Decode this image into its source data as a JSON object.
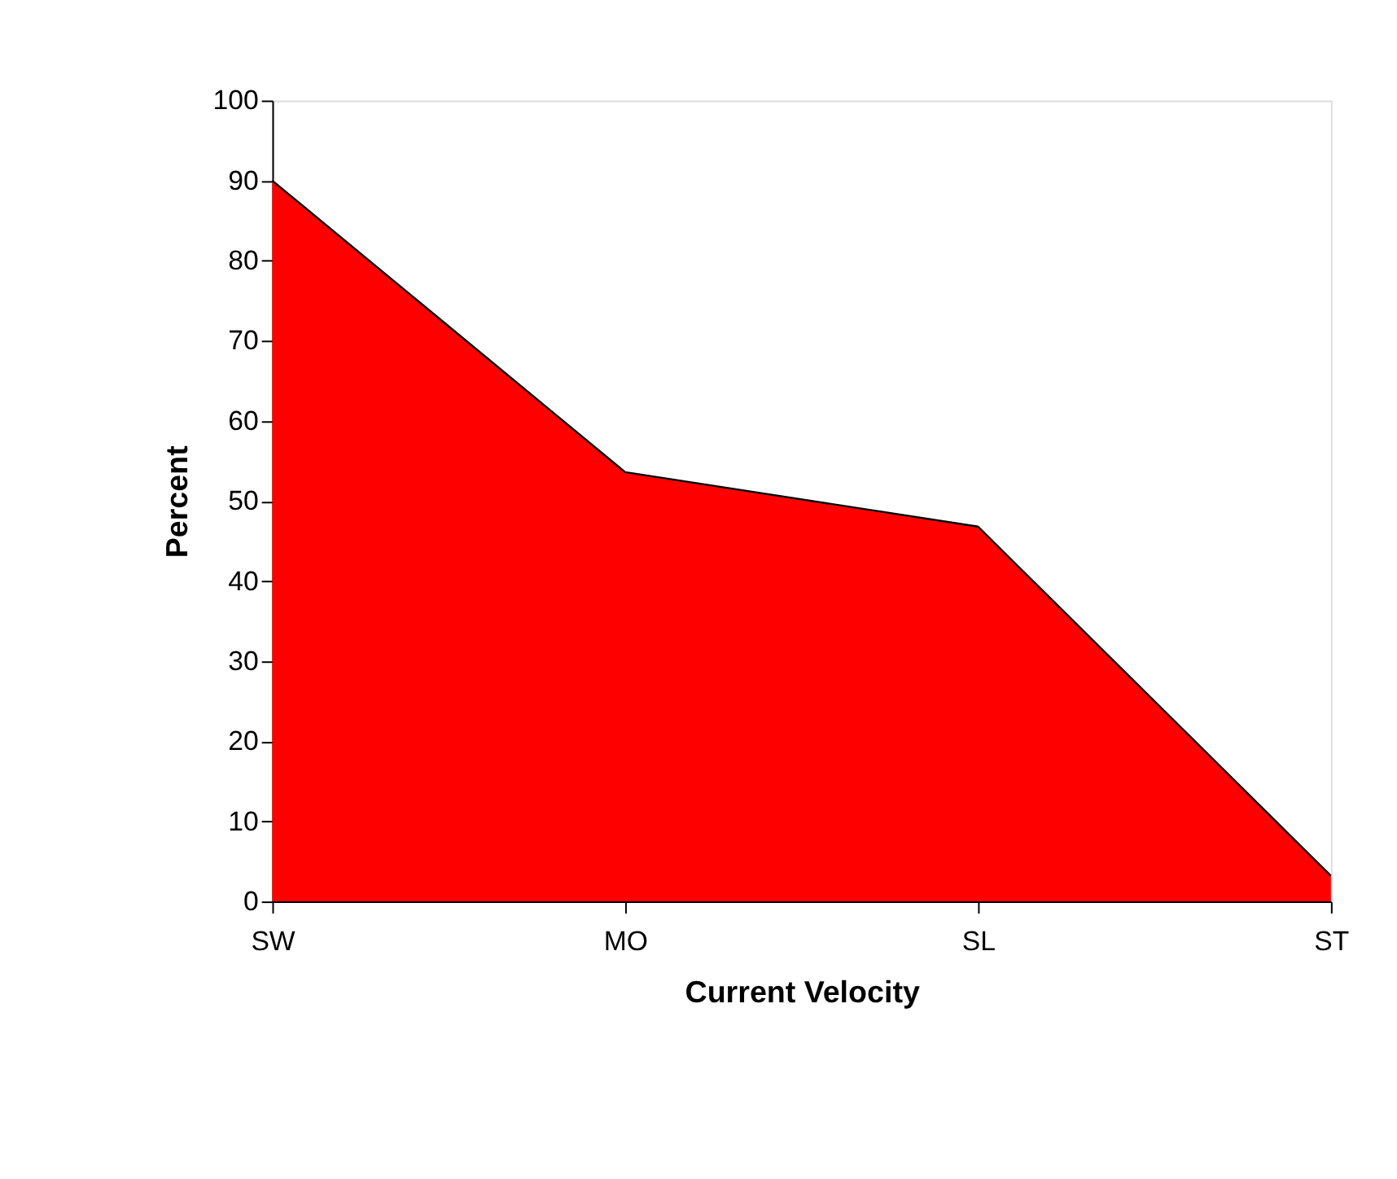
{
  "chart_data": {
    "type": "area",
    "xlabel": "Current Velocity",
    "ylabel": "Percent",
    "categories": [
      "SW",
      "MO",
      "SL",
      "ST"
    ],
    "series": [
      {
        "color": "#ff0000",
        "values": [
          90,
          53.6,
          46.8,
          3.2
        ]
      }
    ],
    "ylim": [
      0,
      100
    ],
    "yticks": [
      0,
      10,
      20,
      30,
      40,
      50,
      60,
      70,
      80,
      90,
      100
    ],
    "grid": false
  }
}
